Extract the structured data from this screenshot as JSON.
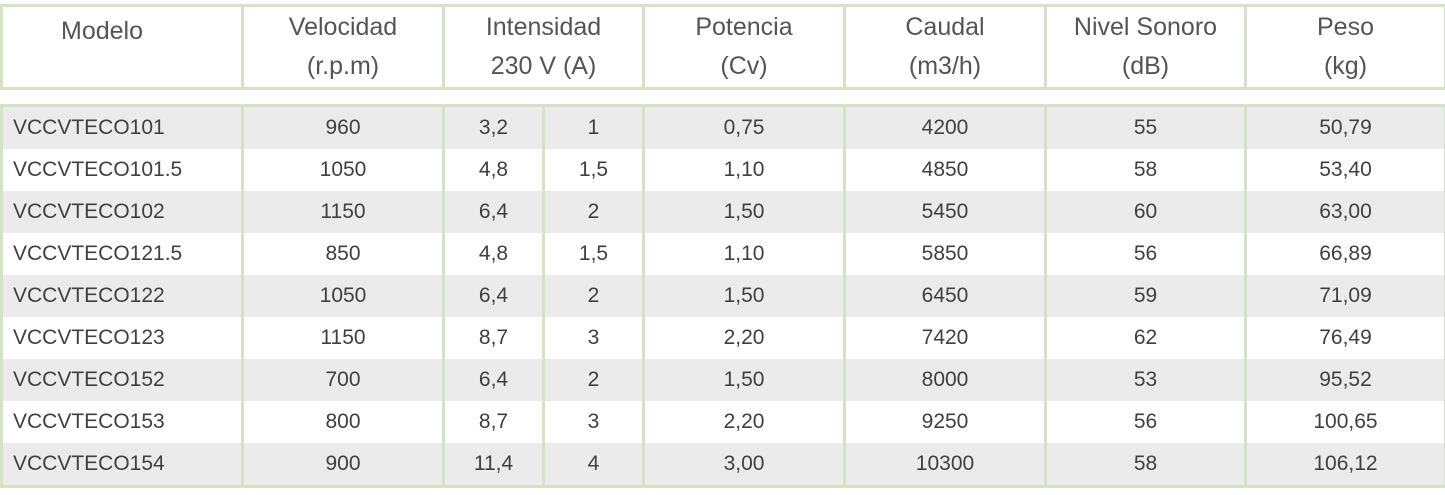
{
  "headers": {
    "modelo": "Modelo",
    "velocidad": [
      "Velocidad",
      "(r.p.m)"
    ],
    "intensidad": [
      "Intensidad",
      "230 V (A)"
    ],
    "potencia": [
      "Potencia",
      "(Cv)"
    ],
    "caudal": [
      "Caudal",
      "(m3/h)"
    ],
    "nivel": [
      "Nivel Sonoro",
      "(dB)"
    ],
    "peso": [
      "Peso",
      "(kg)"
    ]
  },
  "rows": [
    [
      "VCCVTECO101",
      "960",
      "3,2",
      "1",
      "0,75",
      "4200",
      "55",
      "50,79"
    ],
    [
      "VCCVTECO101.5",
      "1050",
      "4,8",
      "1,5",
      "1,10",
      "4850",
      "58",
      "53,40"
    ],
    [
      "VCCVTECO102",
      "1150",
      "6,4",
      "2",
      "1,50",
      "5450",
      "60",
      "63,00"
    ],
    [
      "VCCVTECO121.5",
      "850",
      "4,8",
      "1,5",
      "1,10",
      "5850",
      "56",
      "66,89"
    ],
    [
      "VCCVTECO122",
      "1050",
      "6,4",
      "2",
      "1,50",
      "6450",
      "59",
      "71,09"
    ],
    [
      "VCCVTECO123",
      "1150",
      "8,7",
      "3",
      "2,20",
      "7420",
      "62",
      "76,49"
    ],
    [
      "VCCVTECO152",
      "700",
      "6,4",
      "2",
      "1,50",
      "8000",
      "53",
      "95,52"
    ],
    [
      "VCCVTECO153",
      "800",
      "8,7",
      "3",
      "2,20",
      "9250",
      "56",
      "100,65"
    ],
    [
      "VCCVTECO154",
      "900",
      "11,4",
      "4",
      "3,00",
      "10300",
      "58",
      "106,12"
    ]
  ],
  "colors": {
    "border": "#d4e2c8",
    "row_shaded": "#ebebeb",
    "row_plain": "#ffffff",
    "text": "#404040"
  }
}
